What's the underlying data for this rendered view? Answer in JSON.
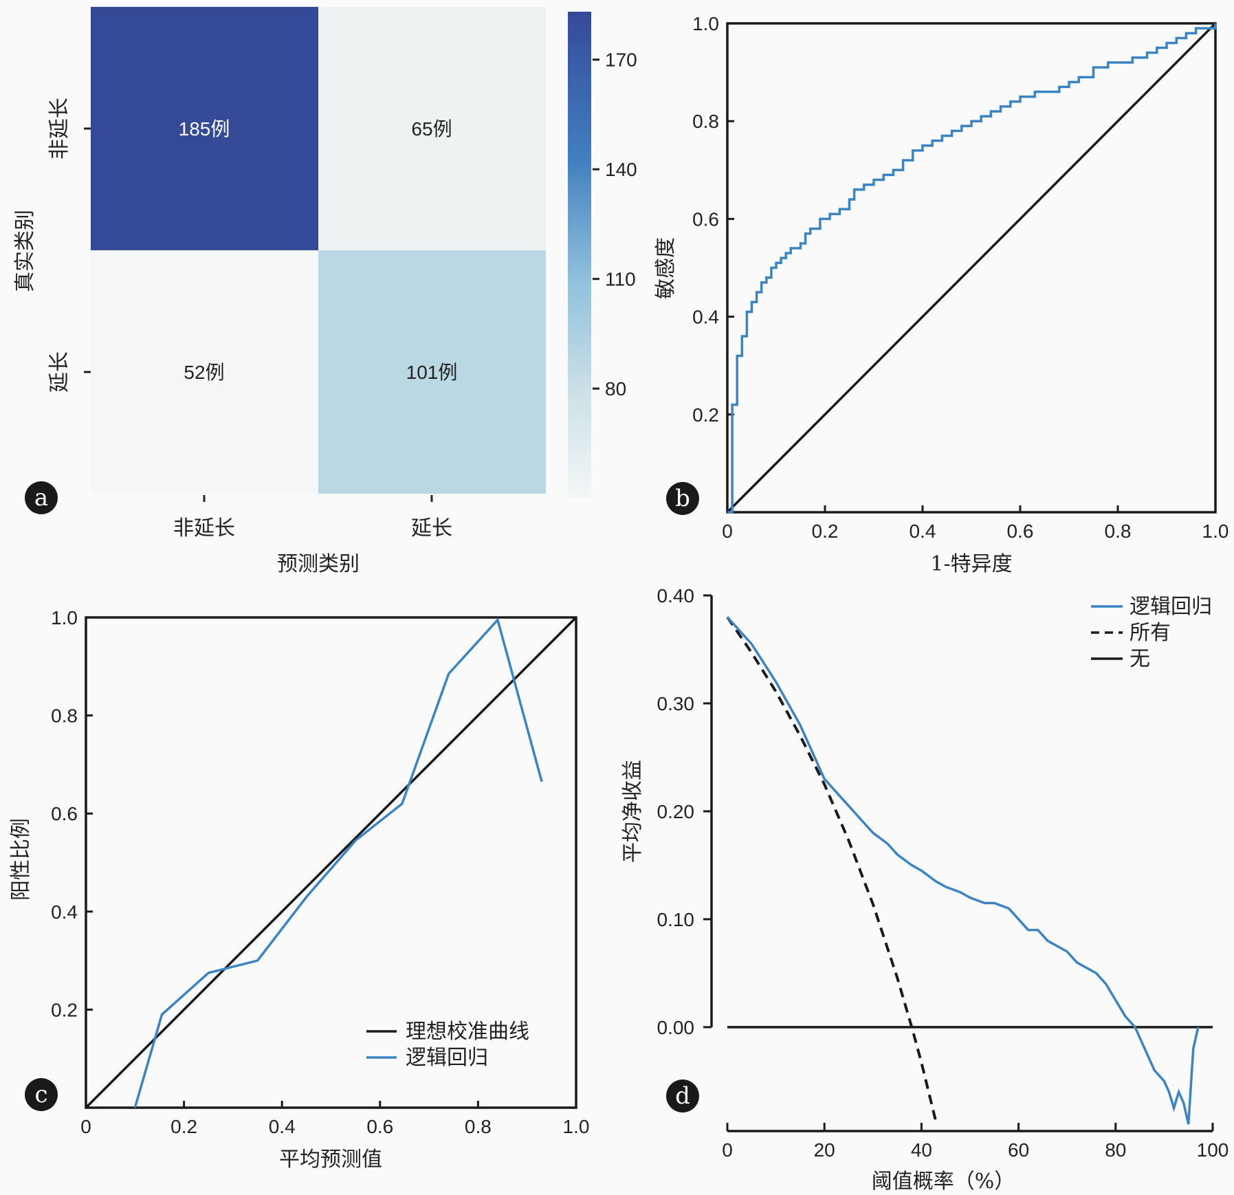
{
  "colors": {
    "curve": "#3b84c4",
    "reference": "#1a1a1a",
    "cm_dark": "#354a97",
    "cm_mid": "#b9d8e3",
    "cm_light": "#edf2f3",
    "cm_lightest": "#f5f7f7",
    "background": "#fafafa"
  },
  "chart_data": [
    {
      "panel": "a",
      "type": "heatmap",
      "xlabel": "预测类别",
      "ylabel": "真实类别",
      "x_categories": [
        "非延长",
        "延长"
      ],
      "y_categories": [
        "非延长",
        "延长"
      ],
      "values": [
        [
          185,
          65
        ],
        [
          52,
          101
        ]
      ],
      "cell_labels": [
        [
          "185例",
          "65例"
        ],
        [
          "52例",
          "101例"
        ]
      ],
      "colorbar": {
        "ticks": [
          "170",
          "140",
          "110",
          "80"
        ],
        "tick_values": [
          170,
          140,
          110,
          80
        ],
        "range": [
          52,
          185
        ]
      }
    },
    {
      "panel": "b",
      "type": "line",
      "xlabel": "1-特异度",
      "ylabel": "敏感度",
      "xlim": [
        0,
        1
      ],
      "ylim": [
        0,
        1
      ],
      "xticks": [
        "0",
        "0.2",
        "0.4",
        "0.6",
        "0.8",
        "1.0"
      ],
      "yticks": [
        "0.2",
        "0.4",
        "0.6",
        "0.8",
        "1.0"
      ],
      "series": [
        {
          "style": "step",
          "x": [
            0,
            0.01,
            0.01,
            0.02,
            0.02,
            0.03,
            0.03,
            0.04,
            0.05,
            0.06,
            0.07,
            0.08,
            0.09,
            0.1,
            0.11,
            0.12,
            0.13,
            0.14,
            0.15,
            0.16,
            0.16,
            0.17,
            0.19,
            0.21,
            0.23,
            0.25,
            0.26,
            0.28,
            0.3,
            0.32,
            0.34,
            0.36,
            0.38,
            0.4,
            0.42,
            0.44,
            0.46,
            0.48,
            0.5,
            0.52,
            0.54,
            0.56,
            0.58,
            0.6,
            0.63,
            0.65,
            0.68,
            0.7,
            0.72,
            0.75,
            0.78,
            0.8,
            0.83,
            0.86,
            0.88,
            0.9,
            0.92,
            0.94,
            0.96,
            0.98,
            1.0
          ],
          "y": [
            0,
            0.0,
            0.22,
            0.27,
            0.32,
            0.33,
            0.36,
            0.41,
            0.43,
            0.45,
            0.47,
            0.48,
            0.5,
            0.51,
            0.52,
            0.53,
            0.54,
            0.54,
            0.55,
            0.55,
            0.57,
            0.58,
            0.6,
            0.61,
            0.62,
            0.64,
            0.66,
            0.67,
            0.68,
            0.69,
            0.7,
            0.72,
            0.74,
            0.75,
            0.76,
            0.77,
            0.78,
            0.79,
            0.8,
            0.81,
            0.82,
            0.83,
            0.84,
            0.85,
            0.86,
            0.86,
            0.87,
            0.88,
            0.89,
            0.91,
            0.92,
            0.92,
            0.93,
            0.94,
            0.95,
            0.96,
            0.97,
            0.98,
            0.99,
            0.99,
            1.0
          ]
        },
        {
          "style": "diagonal",
          "x": [
            0,
            1
          ],
          "y": [
            0,
            1
          ]
        }
      ]
    },
    {
      "panel": "c",
      "type": "line",
      "xlabel": "平均预测值",
      "ylabel": "阳性比例",
      "xlim": [
        0,
        1
      ],
      "ylim": [
        0,
        1
      ],
      "xticks": [
        "0",
        "0.2",
        "0.4",
        "0.6",
        "0.8",
        "1.0"
      ],
      "yticks": [
        "0.2",
        "0.4",
        "0.6",
        "0.8",
        "1.0"
      ],
      "legend": [
        "理想校准曲线",
        "逻辑回归"
      ],
      "legend_position": "lower-right",
      "series": [
        {
          "name": "理想校准曲线",
          "x": [
            0,
            1
          ],
          "y": [
            0,
            1
          ]
        },
        {
          "name": "逻辑回归",
          "x": [
            0.1,
            0.155,
            0.25,
            0.35,
            0.45,
            0.55,
            0.645,
            0.74,
            0.84,
            0.93
          ],
          "y": [
            0.0,
            0.19,
            0.275,
            0.3,
            0.43,
            0.545,
            0.62,
            0.885,
            0.995,
            0.665
          ]
        }
      ]
    },
    {
      "panel": "d",
      "type": "line",
      "xlabel": "阈值概率（%）",
      "ylabel": "平均净收益",
      "xlim": [
        0,
        100
      ],
      "ylim": [
        -0.095,
        0.4
      ],
      "xticks": [
        "0",
        "20",
        "40",
        "60",
        "80",
        "100"
      ],
      "yticks": [
        "0.00",
        "0.10",
        "0.20",
        "0.30",
        "0.40"
      ],
      "legend": [
        "逻辑回归",
        "所有",
        "无"
      ],
      "legend_position": "top-right",
      "series": [
        {
          "name": "逻辑回归",
          "x": [
            0,
            5,
            10,
            15,
            18,
            20,
            22,
            25,
            28,
            30,
            33,
            35,
            38,
            40,
            43,
            45,
            48,
            50,
            53,
            55,
            58,
            60,
            62,
            64,
            66,
            68,
            70,
            72,
            74,
            76,
            78,
            80,
            82,
            84,
            86,
            88,
            90,
            91,
            92,
            93,
            94,
            95,
            96,
            97
          ],
          "y": [
            0.38,
            0.355,
            0.32,
            0.28,
            0.25,
            0.23,
            0.22,
            0.205,
            0.19,
            0.18,
            0.17,
            0.16,
            0.15,
            0.145,
            0.135,
            0.13,
            0.125,
            0.12,
            0.115,
            0.115,
            0.11,
            0.1,
            0.09,
            0.09,
            0.08,
            0.075,
            0.07,
            0.06,
            0.055,
            0.05,
            0.04,
            0.025,
            0.01,
            0.0,
            -0.02,
            -0.04,
            -0.05,
            -0.06,
            -0.075,
            -0.06,
            -0.07,
            -0.09,
            -0.02,
            0.0
          ]
        },
        {
          "name": "所有",
          "x": [
            0,
            5,
            10,
            15,
            20,
            25,
            30,
            35,
            38,
            40,
            43
          ],
          "y": [
            0.38,
            0.347,
            0.311,
            0.27,
            0.225,
            0.173,
            0.114,
            0.046,
            0.0,
            -0.033,
            -0.088
          ]
        },
        {
          "name": "无",
          "x": [
            0,
            100
          ],
          "y": [
            0,
            0
          ]
        }
      ]
    }
  ],
  "panels": [
    "a",
    "b",
    "c",
    "d"
  ]
}
